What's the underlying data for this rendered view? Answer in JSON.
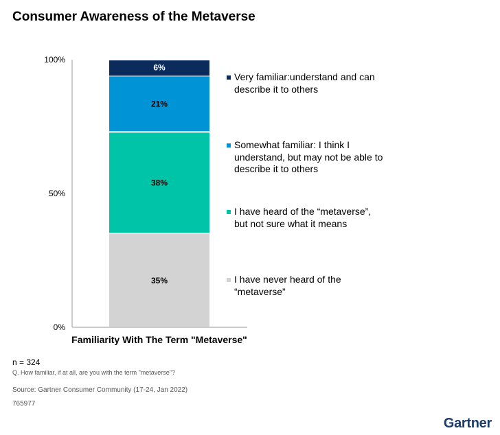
{
  "title": "Consumer Awareness of the Metaverse",
  "chart_data": {
    "type": "bar",
    "stacked": true,
    "categories": [
      "Familiarity With The Term \"Metaverse\""
    ],
    "xlabel": "Familiarity With The Term \"Metaverse\"",
    "ylabel": "",
    "ylim": [
      0,
      100
    ],
    "yticks": [
      "0%",
      "50%",
      "100%"
    ],
    "series": [
      {
        "values": [
          35
        ],
        "label": "35%",
        "color": "#d3d3d3"
      },
      {
        "values": [
          38
        ],
        "label": "38%",
        "color": "#00c4a7"
      },
      {
        "values": [
          21
        ],
        "label": "21%",
        "color": "#0093d5"
      },
      {
        "values": [
          6
        ],
        "label": "6%",
        "color": "#0a2b5c"
      }
    ],
    "legend": {
      "placement": "right",
      "entries": [
        {
          "text": "Very familiar:understand and can describe it to others",
          "color": "#0a2b5c"
        },
        {
          "text": "Somewhat familiar: I think I understand, but may not be able to describe it to others",
          "color": "#0093d5"
        },
        {
          "text": "I have heard of the “metaverse”, but not sure what it means",
          "color": "#00c4a7"
        },
        {
          "text": "I have never heard of the “metaverse”",
          "color": "#d3d3d3"
        }
      ]
    }
  },
  "footer": {
    "n": "n = 324",
    "question": "Q. How familiar, if at all, are you with the term \"metaverse\"?",
    "source": "Source: Gartner Consumer Community (17-24, Jan 2022)",
    "id": "765977"
  },
  "logo": "Gartner"
}
